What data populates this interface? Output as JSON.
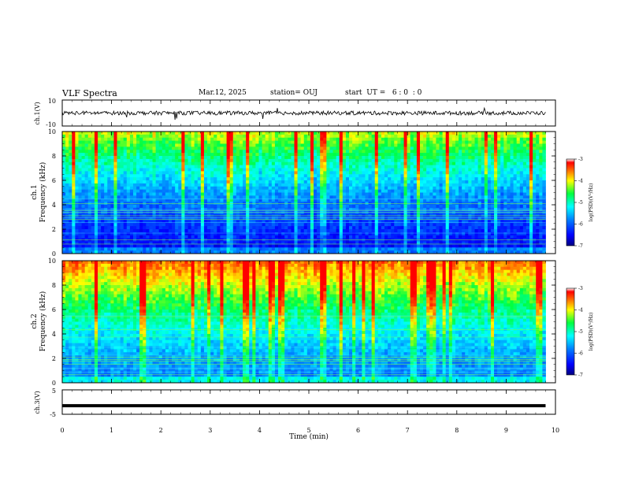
{
  "header": {
    "title": "VLF Spectra",
    "date": "Mar.12, 2025",
    "station": "station= OUJ",
    "start_ut": "start  UT =   6 : 0  : 0"
  },
  "colors": {
    "waveform": "#000000",
    "frame": "#000000",
    "spectrogram_low": "#00008b",
    "spectrogram_mid": "#00c8ff",
    "spectrogram_high": "#ff0000"
  },
  "chart_data": [
    {
      "type": "line",
      "id": "ch1-waveform",
      "ylabel": "ch.1(V)",
      "ylim": [
        -10,
        10
      ],
      "yticks": [
        "10",
        "-10"
      ],
      "xlim": [
        0,
        10
      ],
      "data_extent_min": 9.8,
      "mean": 0,
      "amplitude": 1.5
    },
    {
      "type": "heatmap",
      "id": "ch1-spectrogram",
      "ylabel": "ch.1",
      "ylabel2": "Frequency  (kHz)",
      "ylim": [
        0,
        10
      ],
      "yticks": [
        "0",
        "2",
        "4",
        "6",
        "8",
        "10"
      ],
      "xlim": [
        0,
        10
      ],
      "data_extent_min": 9.8,
      "colorbar": {
        "label": "log(PSD)(V²/Hz)",
        "range": [
          -7,
          -3
        ],
        "ticks": [
          "-3",
          "-4",
          "-5",
          "-6",
          "-7"
        ]
      }
    },
    {
      "type": "heatmap",
      "id": "ch2-spectrogram",
      "ylabel": "ch.2",
      "ylabel2": "Frequency  (kHz)",
      "ylim": [
        0,
        10
      ],
      "yticks": [
        "0",
        "2",
        "4",
        "6",
        "8",
        "10"
      ],
      "xlim": [
        0,
        10
      ],
      "data_extent_min": 9.8,
      "colorbar": {
        "label": "log(PSD)(V²/Hz)",
        "range": [
          -7,
          -3
        ],
        "ticks": [
          "-3",
          "-4",
          "-5",
          "-6",
          "-7"
        ]
      }
    },
    {
      "type": "line",
      "id": "ch3-waveform",
      "ylabel": "ch.3(V)",
      "ylim": [
        -5,
        5
      ],
      "yticks": [
        "5",
        "-5"
      ],
      "xlim": [
        0,
        10
      ],
      "data_extent_min": 9.8,
      "mean": -1.5,
      "amplitude": 0.2
    }
  ],
  "x_axis": {
    "label": "Time  (min)",
    "range": [
      0,
      10
    ],
    "ticks": [
      "0",
      "1",
      "2",
      "3",
      "4",
      "5",
      "6",
      "7",
      "8",
      "9",
      "10"
    ]
  }
}
